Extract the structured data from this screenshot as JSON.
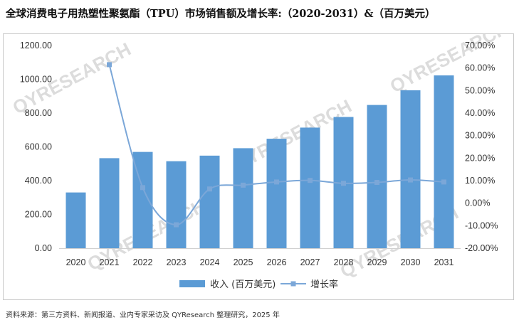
{
  "title": "全球消费电子用热塑性聚氨酯（TPU）市场销售额及增长率:（2020-2031）&（百万美元）",
  "source": "资料来源：第三方资料、新闻报道、业内专家采访及 QYResearch 整理研究，2025 年",
  "watermark": "QYRESEARCH",
  "colors": {
    "bar": "#5b9bd5",
    "line": "#7ba7d8",
    "axis": "#d0d0d0",
    "text": "#333333"
  },
  "chart_data": {
    "type": "bar",
    "title": "全球消费电子用热塑性聚氨酯（TPU）市场销售额及增长率:（2020-2031）&（百万美元）",
    "categories": [
      "2020",
      "2021",
      "2022",
      "2023",
      "2024",
      "2025",
      "2026",
      "2027",
      "2028",
      "2029",
      "2030",
      "2031"
    ],
    "series": [
      {
        "name": "收入 (百万美元)",
        "type": "bar",
        "axis": "left",
        "values": [
          330,
          533,
          570,
          515,
          548,
          592,
          648,
          714,
          777,
          848,
          935,
          1023
        ]
      },
      {
        "name": "增长率",
        "type": "line",
        "axis": "right",
        "values": [
          null,
          61.5,
          6.9,
          -9.6,
          6.3,
          8.0,
          9.4,
          10.1,
          8.8,
          9.2,
          10.3,
          9.4
        ]
      }
    ],
    "y_left": {
      "min": 0,
      "max": 1200,
      "step": 200,
      "tick_labels": [
        "0.00",
        "200.00",
        "400.00",
        "600.00",
        "800.00",
        "1000.00",
        "1200.00"
      ]
    },
    "y_right": {
      "min": -20,
      "max": 70,
      "step": 10,
      "tick_labels": [
        "-20.00%",
        "-10.00%",
        "0.00%",
        "10.00%",
        "20.00%",
        "30.00%",
        "40.00%",
        "50.00%",
        "60.00%",
        "70.00%"
      ]
    },
    "legend": [
      "收入 (百万美元)",
      "增长率"
    ],
    "legend_position": "bottom"
  }
}
